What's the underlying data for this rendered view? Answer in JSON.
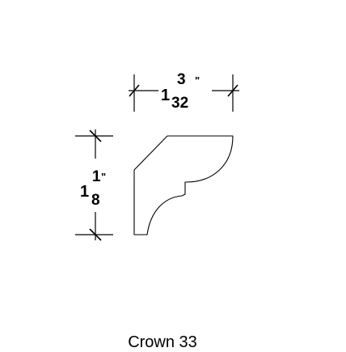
{
  "width_dimension": {
    "whole": "1",
    "numerator": "3",
    "denominator": "32",
    "unit": "\""
  },
  "height_dimension": {
    "whole": "1",
    "numerator": "1",
    "denominator": "8",
    "unit": "\""
  },
  "caption": "Crown 33"
}
